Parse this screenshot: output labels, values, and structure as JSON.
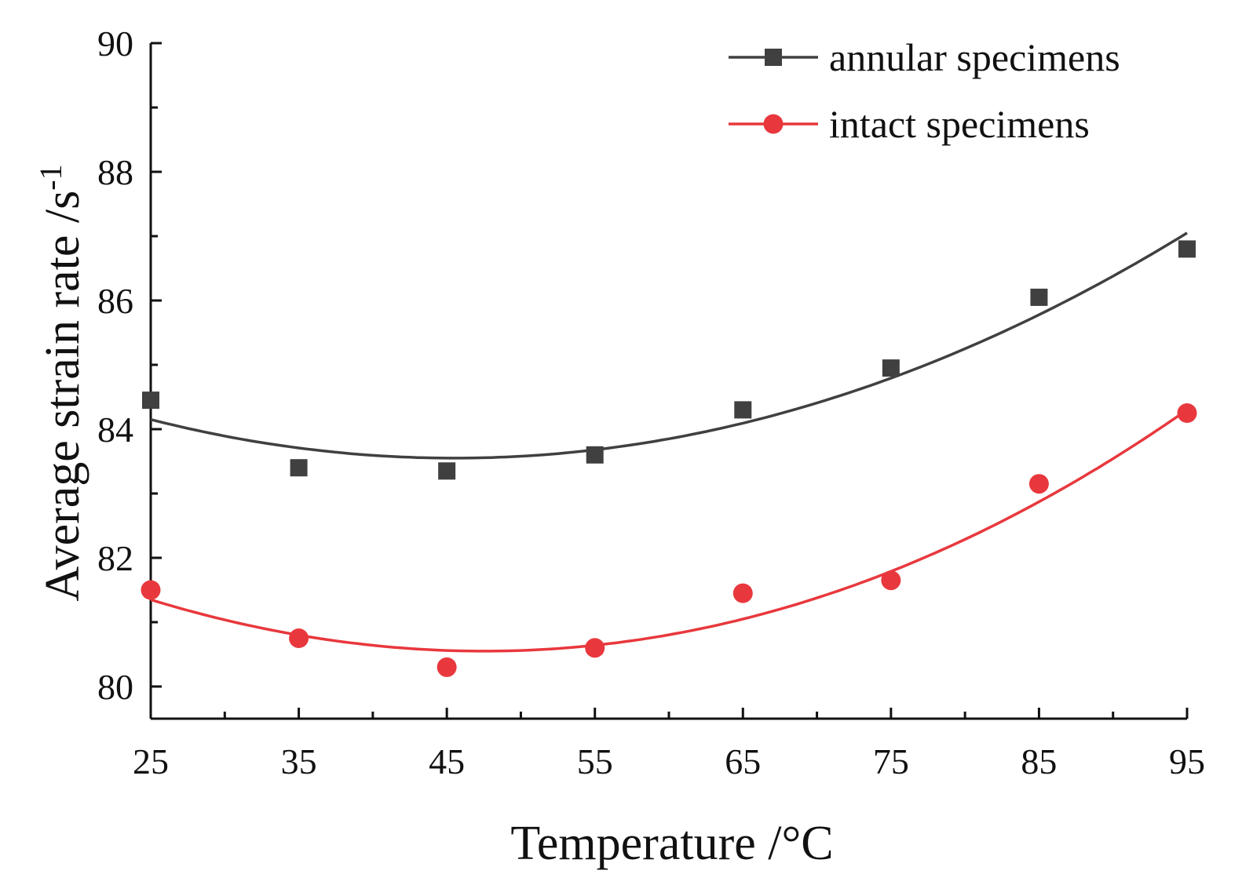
{
  "chart_data": {
    "type": "scatter",
    "title": "",
    "xlabel": "Temperature /°C",
    "ylabel": "Average strain rate /s",
    "ylabel_superscript": "-1",
    "xlim": [
      25,
      95
    ],
    "ylim": [
      79.5,
      90
    ],
    "x_ticks": [
      25,
      35,
      45,
      55,
      65,
      75,
      85,
      95
    ],
    "y_ticks": [
      80,
      82,
      84,
      86,
      88,
      90
    ],
    "x_minor_step": 5,
    "y_minor_step": 1,
    "grid": false,
    "legend_position": "top-right",
    "series": [
      {
        "name": "annular specimens",
        "color": "#404040",
        "marker": "square",
        "x": [
          25,
          35,
          45,
          55,
          65,
          75,
          85,
          95
        ],
        "y": [
          84.45,
          83.4,
          83.35,
          83.6,
          84.3,
          84.95,
          86.05,
          86.8
        ],
        "fit": {
          "type": "quadratic",
          "y_start": 84.15,
          "y_min": 83.55,
          "x_min": 45.5,
          "y_end": 87.05
        }
      },
      {
        "name": "intact specimens",
        "color": "#e8383d",
        "marker": "circle",
        "x": [
          25,
          35,
          45,
          55,
          65,
          75,
          85,
          95
        ],
        "y": [
          81.5,
          80.75,
          80.3,
          80.6,
          81.45,
          81.65,
          83.15,
          84.25
        ],
        "fit": {
          "type": "quadratic",
          "y_start": 81.35,
          "y_min": 80.55,
          "x_min": 47.5,
          "y_end": 84.3
        }
      }
    ]
  }
}
